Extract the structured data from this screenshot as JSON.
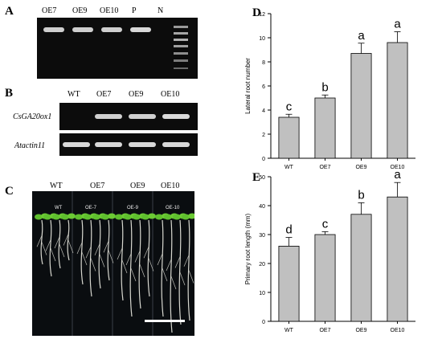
{
  "panels": {
    "A": {
      "label": "A",
      "lanes": [
        "OE7",
        "OE9",
        "OE10",
        "P",
        "N"
      ]
    },
    "B": {
      "label": "B",
      "lanes": [
        "WT",
        "OE7",
        "OE9",
        "OE10"
      ],
      "genes": [
        "CsGA20ox1",
        "Atactin11"
      ]
    },
    "C": {
      "label": "C",
      "groups": [
        "WT",
        "OE7",
        "OE9",
        "OE10"
      ],
      "plant_labels": [
        "WT",
        "OE-7",
        "OE-9",
        "OE-10"
      ]
    }
  },
  "chart_data": [
    {
      "panel": "D",
      "type": "bar",
      "categories": [
        "WT",
        "OE7",
        "OE9",
        "OE10"
      ],
      "values": [
        3.4,
        5.0,
        8.7,
        9.6
      ],
      "errors": [
        0.25,
        0.25,
        0.85,
        0.9
      ],
      "letters": [
        "c",
        "b",
        "a",
        "a"
      ],
      "ylabel": "Lateral root number",
      "xlabel": "",
      "ylim": [
        0,
        12
      ],
      "yticks": [
        0,
        2,
        4,
        6,
        8,
        10,
        12
      ],
      "bar_color": "#c0c0c0"
    },
    {
      "panel": "E",
      "type": "bar",
      "categories": [
        "WT",
        "OE7",
        "OE9",
        "OE10"
      ],
      "values": [
        26,
        30,
        37,
        43
      ],
      "errors": [
        3,
        1,
        4,
        5
      ],
      "letters": [
        "d",
        "c",
        "b",
        "a"
      ],
      "ylabel": "Primary root length (mm)",
      "xlabel": "",
      "ylim": [
        0,
        50
      ],
      "yticks": [
        0,
        10,
        20,
        30,
        40,
        50
      ],
      "bar_color": "#c0c0c0"
    }
  ]
}
